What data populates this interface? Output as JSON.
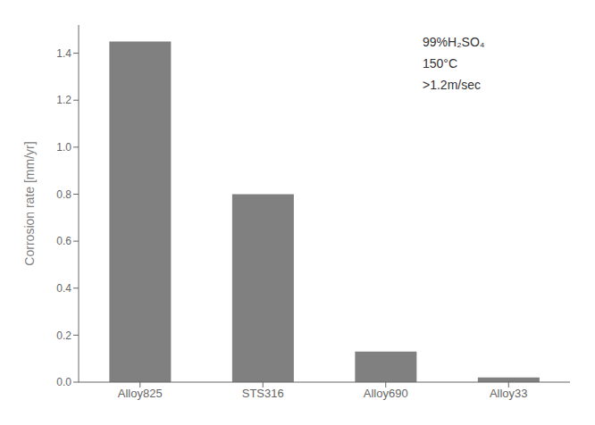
{
  "chart_data": {
    "type": "bar",
    "categories": [
      "Alloy825",
      "STS316",
      "Alloy690",
      "Alloy33"
    ],
    "values": [
      1.45,
      0.8,
      0.13,
      0.02
    ],
    "color": "#808080",
    "ylabel": "Corrosion rate [mm/yr]",
    "annotations": [
      "99%H₂SO₄",
      "150°C",
      ">1.2m/sec"
    ],
    "ylim": [
      0.0,
      1.52
    ],
    "yticks": [
      {
        "value": 0.0,
        "label": "0.0"
      },
      0.2,
      0.4,
      0.6,
      0.8,
      {
        "value": 1.0,
        "label": "1.0"
      },
      1.2,
      1.4
    ],
    "grid": false
  }
}
